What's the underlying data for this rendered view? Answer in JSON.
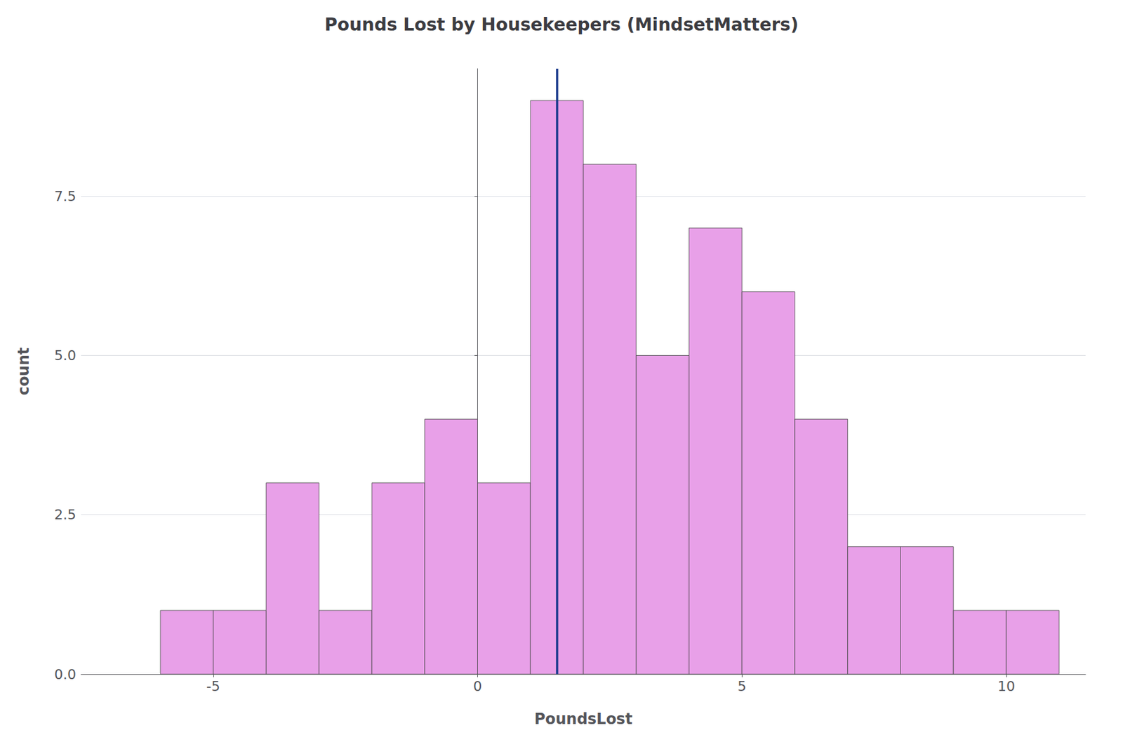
{
  "chart_data": {
    "type": "histogram",
    "title": "Pounds Lost by Housekeepers (MindsetMatters)",
    "xlabel": "PoundsLost",
    "ylabel": "count",
    "bins": [
      -6,
      -5,
      -4,
      -3,
      -2,
      -1,
      0,
      1,
      2,
      3,
      4,
      5,
      6,
      7,
      8,
      9,
      10,
      11
    ],
    "counts": [
      1,
      1,
      3,
      1,
      3,
      4,
      3,
      9,
      8,
      5,
      7,
      6,
      4,
      2,
      2,
      1,
      1
    ],
    "color": "#E8A0E8",
    "mean_line": {
      "value": 1.5,
      "color": "#1a3a8c"
    },
    "xlim": [
      -7.5,
      11.5
    ],
    "ylim": [
      0,
      9.5
    ],
    "xticks": [
      -5,
      0,
      5,
      10
    ],
    "yticks": [
      {
        "value": 0,
        "label": "0.0"
      },
      2.5,
      {
        "value": 5,
        "label": "5.0"
      },
      7.5
    ],
    "grid": true
  }
}
